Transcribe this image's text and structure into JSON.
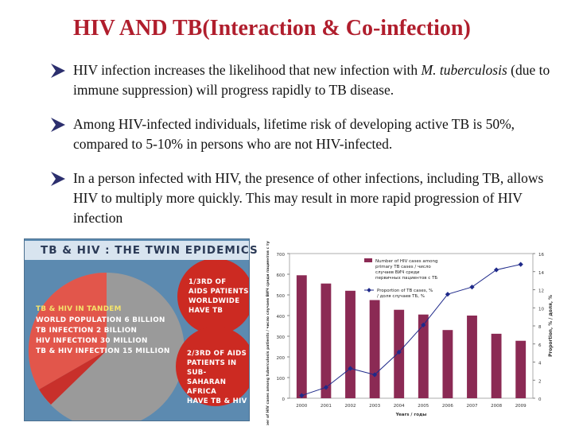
{
  "slide": {
    "title": "HIV AND TB(Interaction & Co-infection)",
    "bullets": [
      {
        "parts": [
          {
            "text": "HIV infection increases the likelihood that new infection with ",
            "italic": false
          },
          {
            "text": "M. tuberculosis",
            "italic": true
          },
          {
            "text": " (due to immune suppression) will progress rapidly to TB disease.",
            "italic": false
          }
        ]
      },
      {
        "parts": [
          {
            "text": "Among HIV-infected individuals, lifetime risk of developing active TB is 50%, compared to 5-10% in persons who are not HIV-infected.",
            "italic": false
          }
        ]
      },
      {
        "parts": [
          {
            "text": "In a person infected with HIV, the presence of other infections, including TB, allows HIV to multiply more quickly. This may result in more rapid progression of HIV infection",
            "italic": false
          }
        ]
      }
    ],
    "bullet_color": "#2c2f6e",
    "title_color": "#b01e2d"
  },
  "panel": {
    "title": "TB & HIV : THE TWIN EPIDEMICS",
    "tandem_heading": "TB & HIV IN TANDEM",
    "tandem_lines": [
      "WORLD POPULATION 6 BILLION",
      "TB INFECTION 2 BILLION",
      "HIV INFECTION 30 MILLION",
      "TB & HIV INFECTION 15 MILLION"
    ],
    "circle1_lines": [
      "1/3RD OF",
      "AIDS  PATIENTS",
      "WORLDWIDE",
      "HAVE TB"
    ],
    "circle2_lines": [
      "2/3RD OF AIDS",
      "PATIENTS IN SUB-",
      "SAHARAN AFRICA",
      "HAVE TB & HIV"
    ]
  },
  "chart_data": {
    "type": "bar",
    "categories": [
      "2000",
      "2001",
      "2002",
      "2003",
      "2004",
      "2005",
      "2006",
      "2007",
      "2008",
      "2009"
    ],
    "series": [
      {
        "name": "Number of HIV cases among primary TB cases / число случаев ВИЧ среди первичных пациентов с ТБ",
        "type": "bar",
        "axis": "left",
        "values": [
          595,
          555,
          520,
          475,
          428,
          405,
          330,
          400,
          312,
          278
        ]
      },
      {
        "name": "Proportion of TB cases, % / доля случаев ТБ, %",
        "type": "line",
        "axis": "right",
        "values": [
          0.3,
          1.2,
          3.3,
          2.6,
          5.1,
          8.1,
          11.5,
          12.3,
          14.2,
          14.8
        ]
      }
    ],
    "ylabel": "Number of HIV cases among tuberculosis patients / число случаев ВИЧ среди пациентов с туберкулезом",
    "y2label": "Proportion, % / доля, %",
    "xlabel": "Years / годы",
    "ylim": [
      0,
      700
    ],
    "y2lim": [
      0,
      16
    ],
    "yticks": [
      "0",
      "100",
      "200",
      "300",
      "400",
      "500",
      "600",
      "700"
    ],
    "y2ticks": [
      "0",
      "2",
      "4",
      "6",
      "8",
      "10",
      "12",
      "14",
      "16"
    ],
    "bar_color": "#8b2a54",
    "line_color": "#1f2a8a"
  }
}
